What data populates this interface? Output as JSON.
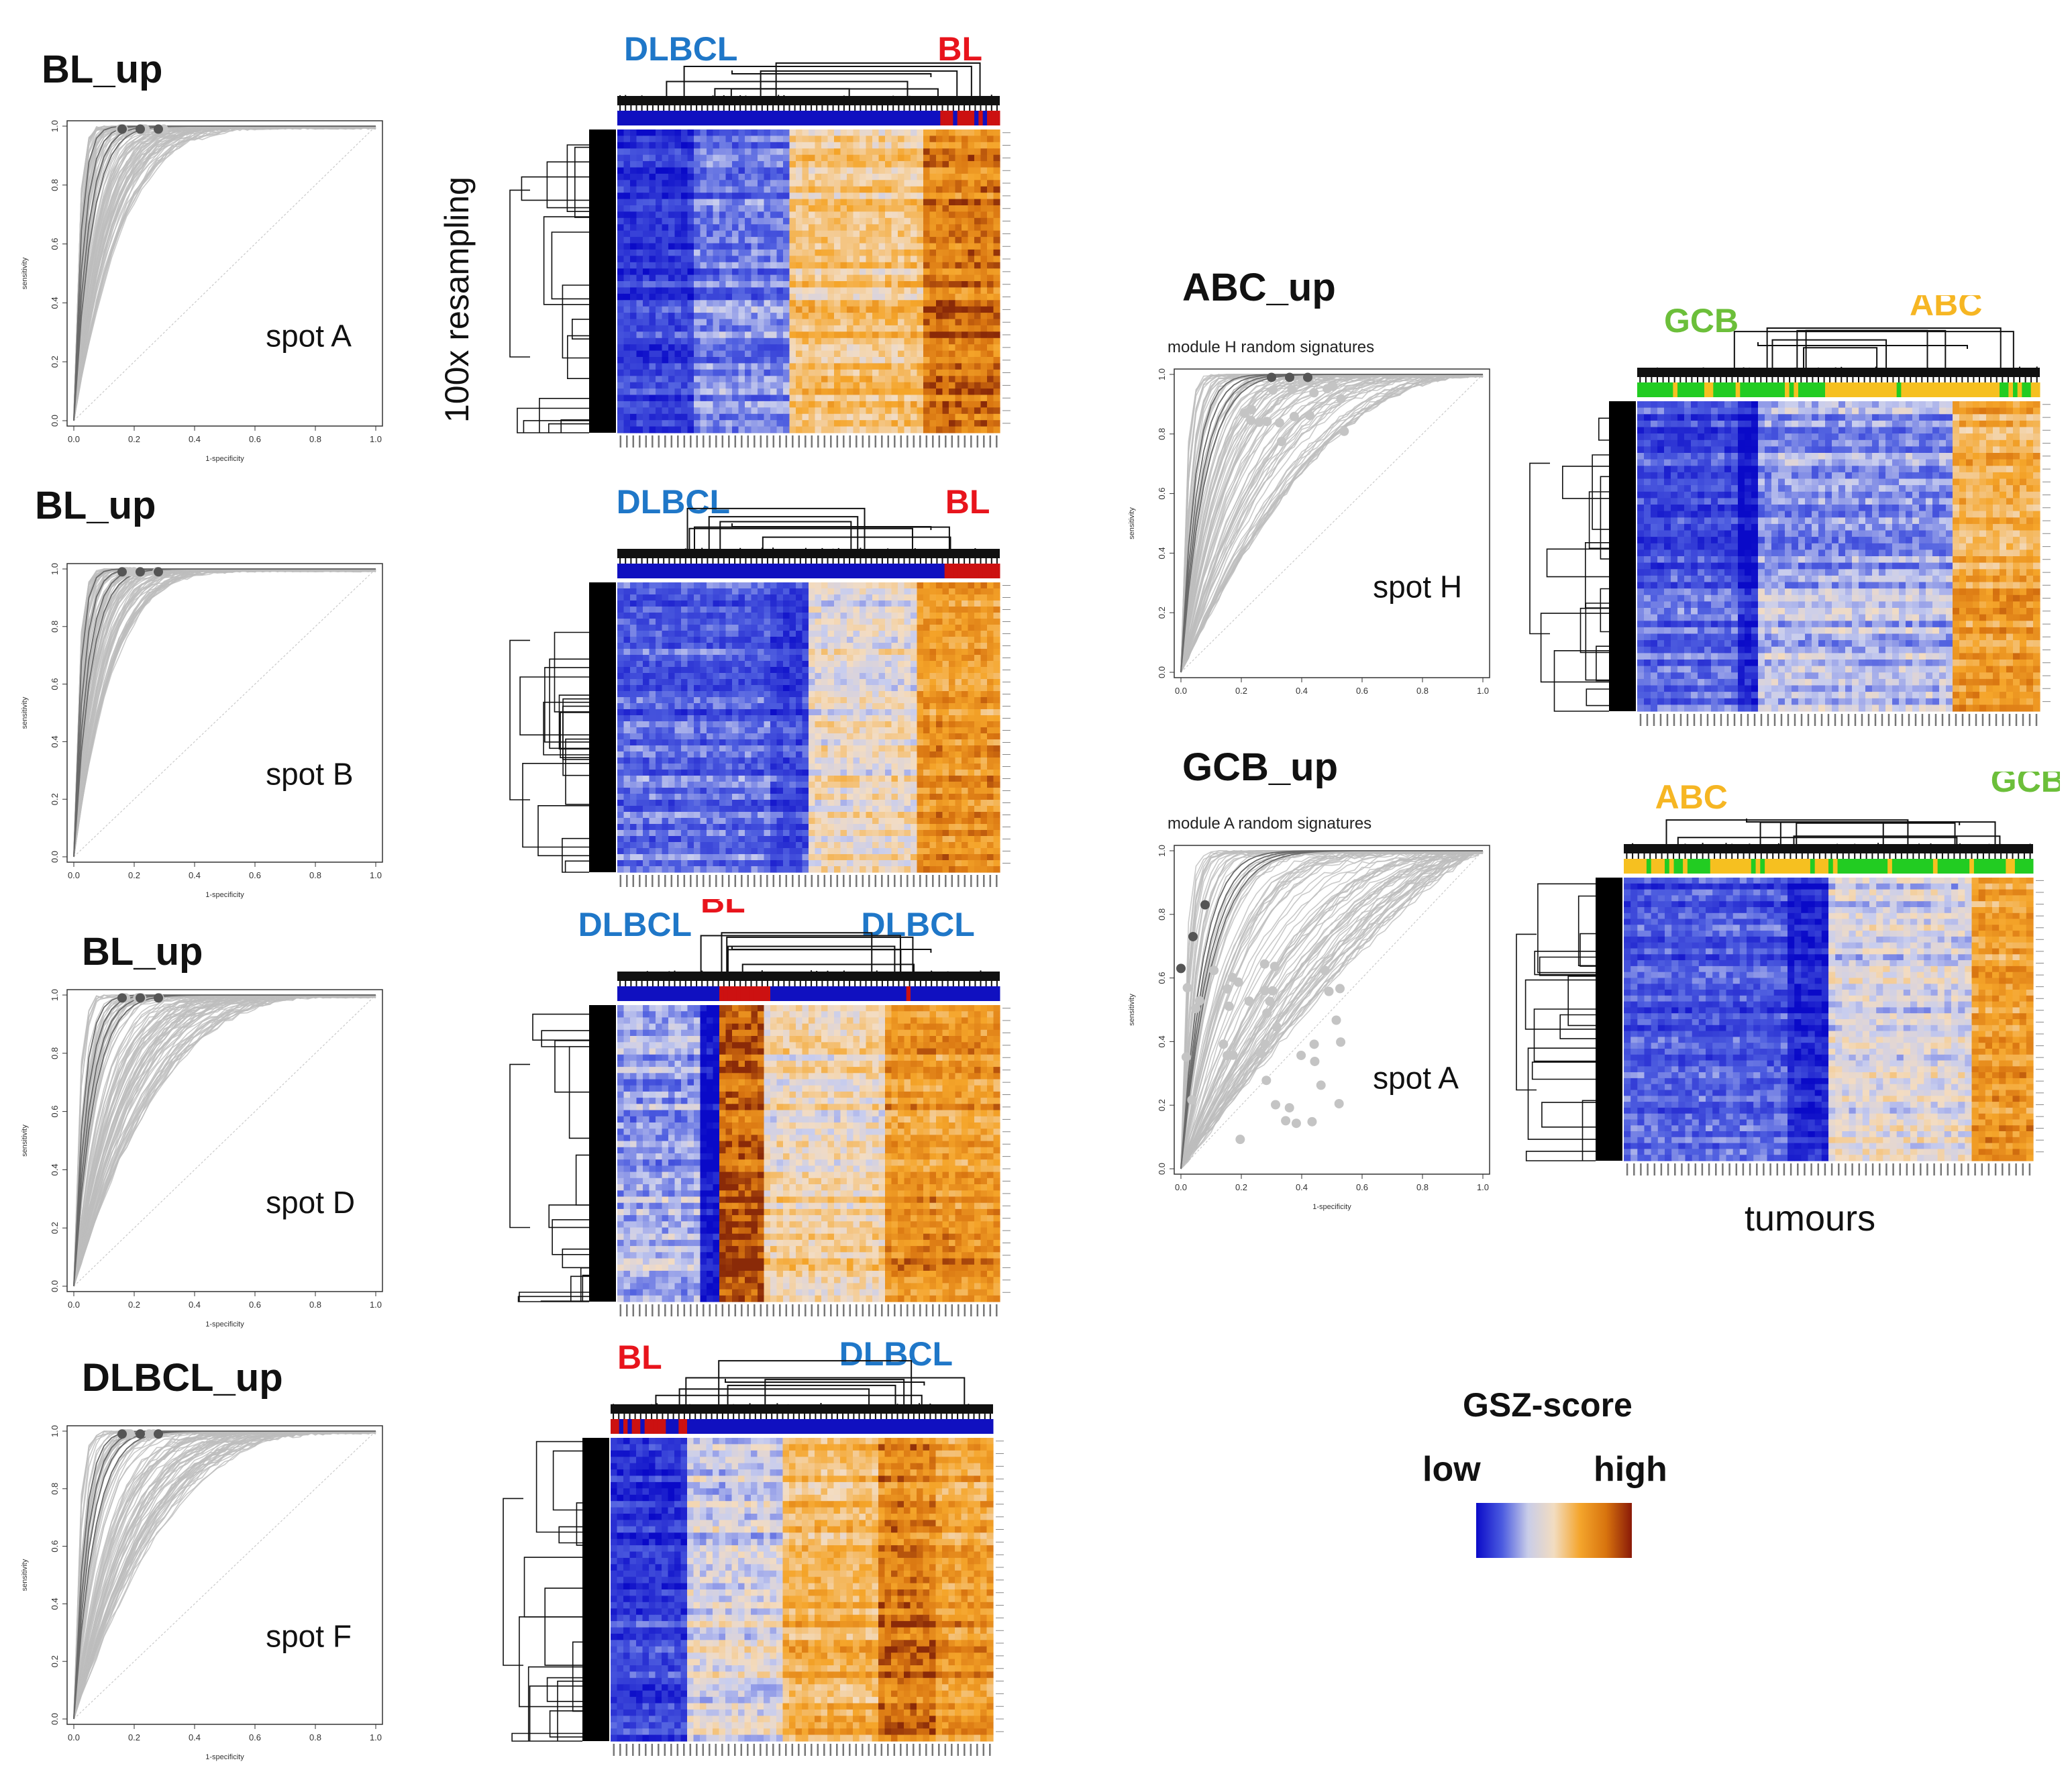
{
  "roc_panels": [
    {
      "id": "bl-up-a",
      "title": "BL_up",
      "spot": "spot A",
      "subtitle": "",
      "curve_spread": 0.25
    },
    {
      "id": "bl-up-b",
      "title": "BL_up",
      "spot": "spot B",
      "subtitle": "",
      "curve_spread": 0.2
    },
    {
      "id": "bl-up-d",
      "title": "BL_up",
      "spot": "spot D",
      "subtitle": "",
      "curve_spread": 0.45
    },
    {
      "id": "dlbcl-up-f",
      "title": "DLBCL_up",
      "spot": "spot F",
      "subtitle": "",
      "curve_spread": 0.5
    },
    {
      "id": "abc-up-h",
      "title": "ABC_up",
      "spot": "spot H",
      "subtitle": "module H random signatures",
      "curve_spread": 0.75
    },
    {
      "id": "gcb-up-a",
      "title": "GCB_up",
      "spot": "spot A",
      "subtitle": "module A random signatures",
      "curve_spread": 1.3
    }
  ],
  "axis_ticks": [
    "0.0",
    "0.2",
    "0.4",
    "0.6",
    "0.8",
    "1.0"
  ],
  "axis_labels": {
    "x": "1-specificity",
    "y": "sensitivity"
  },
  "heatmaps": [
    {
      "id": "hm-1",
      "groups": [
        {
          "label": "DLBCL",
          "color": "#1f77c8"
        },
        {
          "label": "BL",
          "color": "#e8141c"
        }
      ]
    },
    {
      "id": "hm-2",
      "groups": [
        {
          "label": "DLBCL",
          "color": "#1f77c8"
        },
        {
          "label": "BL",
          "color": "#e8141c"
        }
      ]
    },
    {
      "id": "hm-3",
      "groups": [
        {
          "label": "DLBCL",
          "color": "#1f77c8"
        },
        {
          "label": "BL",
          "color": "#e8141c"
        },
        {
          "label": "DLBCL",
          "color": "#1f77c8"
        }
      ]
    },
    {
      "id": "hm-4",
      "groups": [
        {
          "label": "BL",
          "color": "#e8141c"
        },
        {
          "label": "DLBCL",
          "color": "#1f77c8"
        }
      ]
    },
    {
      "id": "hm-5",
      "groups": [
        {
          "label": "GCB",
          "color": "#6cbf3a"
        },
        {
          "label": "ABC",
          "color": "#f6b623"
        }
      ]
    },
    {
      "id": "hm-6",
      "groups": [
        {
          "label": "ABC",
          "color": "#f6b623"
        },
        {
          "label": "GCB",
          "color": "#6cbf3a"
        }
      ]
    }
  ],
  "resampling_label": "100x resampling",
  "tumours_label": "tumours",
  "legend": {
    "title": "GSZ-score",
    "low": "low",
    "high": "high",
    "colors": [
      "#0a0ac8",
      "#4b5be0",
      "#c9cde8",
      "#f2dcc0",
      "#f4a52c",
      "#d8740e",
      "#8a1a08"
    ]
  },
  "chart_data": [
    {
      "type": "line",
      "title": "BL_up",
      "annotation": "spot A",
      "xlabel": "1-specificity",
      "ylabel": "sensitivity",
      "xlim": [
        0,
        1
      ],
      "ylim": [
        0,
        1
      ],
      "series": [
        {
          "name": "ROC curves (100x resampling)",
          "values": "many curves near sensitivity 1.0 at low 1-specificity"
        }
      ]
    },
    {
      "type": "heatmap",
      "title": "",
      "column_groups": [
        "DLBCL",
        "BL"
      ],
      "color_scale": "GSZ-score"
    },
    {
      "type": "line",
      "title": "BL_up",
      "annotation": "spot B",
      "xlabel": "1-specificity",
      "ylabel": "sensitivity",
      "xlim": [
        0,
        1
      ],
      "ylim": [
        0,
        1
      ]
    },
    {
      "type": "heatmap",
      "column_groups": [
        "DLBCL",
        "BL"
      ],
      "color_scale": "GSZ-score"
    },
    {
      "type": "line",
      "title": "BL_up",
      "annotation": "spot D",
      "xlabel": "1-specificity",
      "ylabel": "sensitivity",
      "xlim": [
        0,
        1
      ],
      "ylim": [
        0,
        1
      ]
    },
    {
      "type": "heatmap",
      "column_groups": [
        "DLBCL",
        "BL",
        "DLBCL"
      ],
      "color_scale": "GSZ-score"
    },
    {
      "type": "line",
      "title": "DLBCL_up",
      "annotation": "spot F",
      "xlabel": "1-specificity",
      "ylabel": "sensitivity",
      "xlim": [
        0,
        1
      ],
      "ylim": [
        0,
        1
      ]
    },
    {
      "type": "heatmap",
      "column_groups": [
        "BL",
        "DLBCL"
      ],
      "color_scale": "GSZ-score"
    },
    {
      "type": "line",
      "title": "ABC_up",
      "subtitle": "module H random signatures",
      "annotation": "spot H",
      "xlabel": "",
      "ylabel": "sensitivity",
      "xlim": [
        0,
        1
      ],
      "ylim": [
        0,
        1
      ]
    },
    {
      "type": "heatmap",
      "column_groups": [
        "GCB",
        "ABC"
      ],
      "color_scale": "GSZ-score"
    },
    {
      "type": "line",
      "title": "GCB_up",
      "subtitle": "module A random signatures",
      "annotation": "spot A",
      "xlabel": "1-specificity",
      "ylabel": "sensitivity",
      "xlim": [
        0,
        1
      ],
      "ylim": [
        0,
        1
      ]
    },
    {
      "type": "heatmap",
      "column_groups": [
        "ABC",
        "GCB"
      ],
      "xlabel": "tumours",
      "color_scale": "GSZ-score"
    }
  ]
}
